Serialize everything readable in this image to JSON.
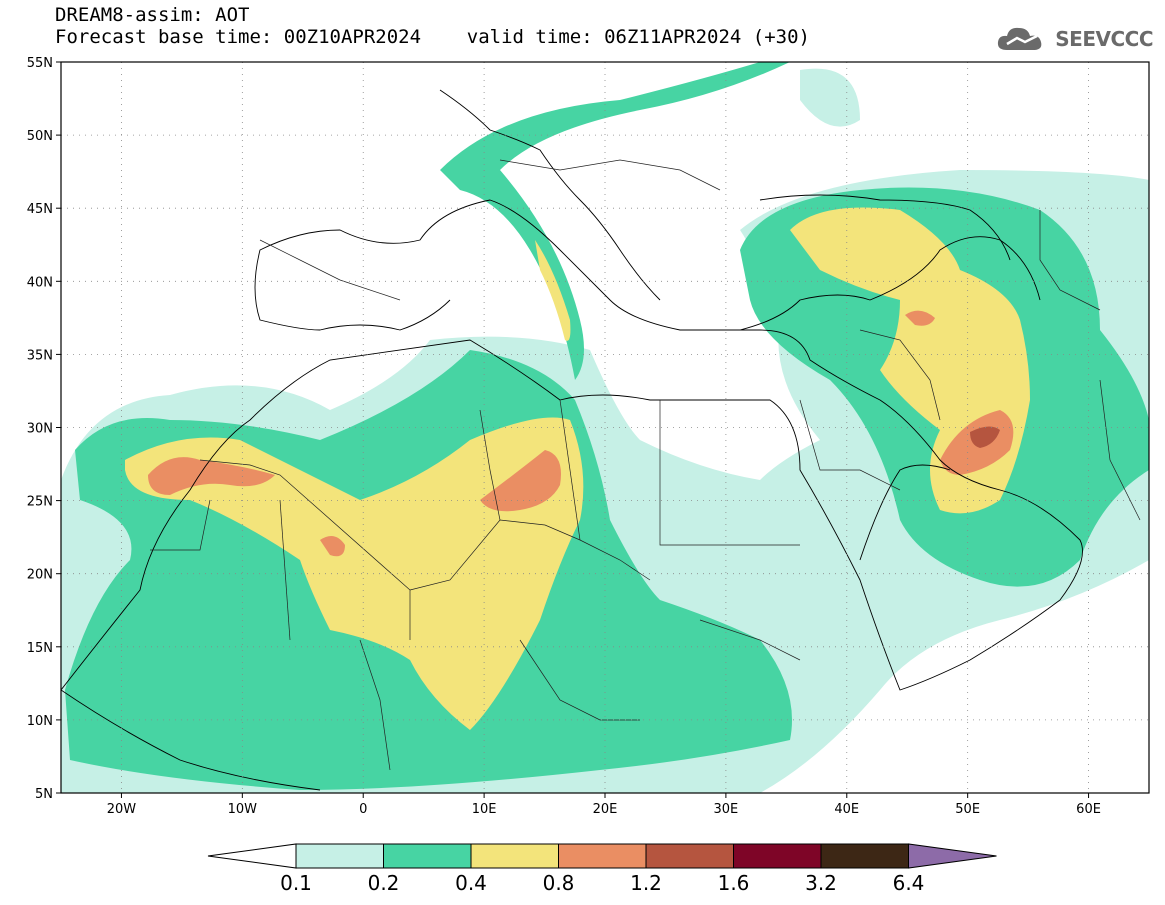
{
  "header": {
    "title_line1": "DREAM8-assim: AOT",
    "title_line2": "Forecast base time: 00Z10APR2024    valid time: 06Z11APR2024 (+30)",
    "logo_text": "SEEVCCC"
  },
  "map": {
    "lat_labels": [
      "55N",
      "50N",
      "45N",
      "40N",
      "35N",
      "30N",
      "25N",
      "20N",
      "15N",
      "10N",
      "5N"
    ],
    "lon_labels": [
      "20W",
      "10W",
      "0",
      "10E",
      "20E",
      "30E",
      "40E",
      "50E",
      "60E"
    ],
    "lat_range": [
      5,
      55
    ],
    "lon_range": [
      -25,
      65
    ],
    "grid": "dotted"
  },
  "colorbar": {
    "colors": [
      "#c6f0e6",
      "#47d4a3",
      "#f3e47b",
      "#ea8e63",
      "#b5553f",
      "#7e0527",
      "#3d2715"
    ],
    "extend_low_color": "#ffffff",
    "extend_high_color": "#8d6ba8",
    "labels": [
      "0.1",
      "0.2",
      "0.4",
      "0.8",
      "1.2",
      "1.6",
      "3.2",
      "6.4"
    ]
  }
}
